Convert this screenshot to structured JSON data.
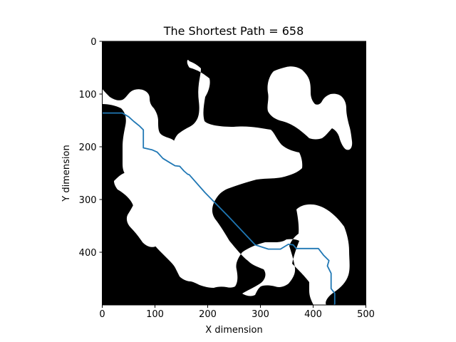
{
  "chart_data": {
    "type": "line",
    "title": "The Shortest Path = 658",
    "xlabel": "X dimension",
    "ylabel": "Y dimension",
    "xlim": [
      0,
      500
    ],
    "ylim": [
      500,
      0
    ],
    "y_inverted": true,
    "grid": false,
    "legend": "none",
    "background_image": "binary occupancy map (white free space, black obstacles)",
    "xticks": [
      "0",
      "100",
      "200",
      "300",
      "400",
      "500"
    ],
    "yticks": [
      "0",
      "100",
      "200",
      "300",
      "400"
    ],
    "xtick_values": [
      0,
      100,
      200,
      300,
      400,
      500
    ],
    "ytick_values": [
      0,
      100,
      200,
      300,
      400
    ],
    "series": [
      {
        "color": "#1f77b4",
        "points": [
          [
            0,
            136
          ],
          [
            38,
            136
          ],
          [
            50,
            143
          ],
          [
            60,
            152
          ],
          [
            70,
            160
          ],
          [
            78,
            168
          ],
          [
            78,
            202
          ],
          [
            95,
            206
          ],
          [
            104,
            210
          ],
          [
            115,
            222
          ],
          [
            128,
            230
          ],
          [
            138,
            236
          ],
          [
            147,
            237
          ],
          [
            155,
            246
          ],
          [
            162,
            252
          ],
          [
            165,
            253
          ],
          [
            195,
            287
          ],
          [
            240,
            333
          ],
          [
            290,
            386
          ],
          [
            315,
            394
          ],
          [
            338,
            394
          ],
          [
            353,
            385
          ],
          [
            362,
            386
          ],
          [
            368,
            393
          ],
          [
            410,
            393
          ],
          [
            420,
            406
          ],
          [
            430,
            416
          ],
          [
            427,
            426
          ],
          [
            434,
            440
          ],
          [
            434,
            469
          ],
          [
            441,
            478
          ],
          [
            441,
            498
          ],
          [
            440,
            500
          ]
        ]
      }
    ],
    "colors": {
      "free": "#ffffff",
      "obstacle": "#000000",
      "path": "#1f77b4"
    }
  }
}
